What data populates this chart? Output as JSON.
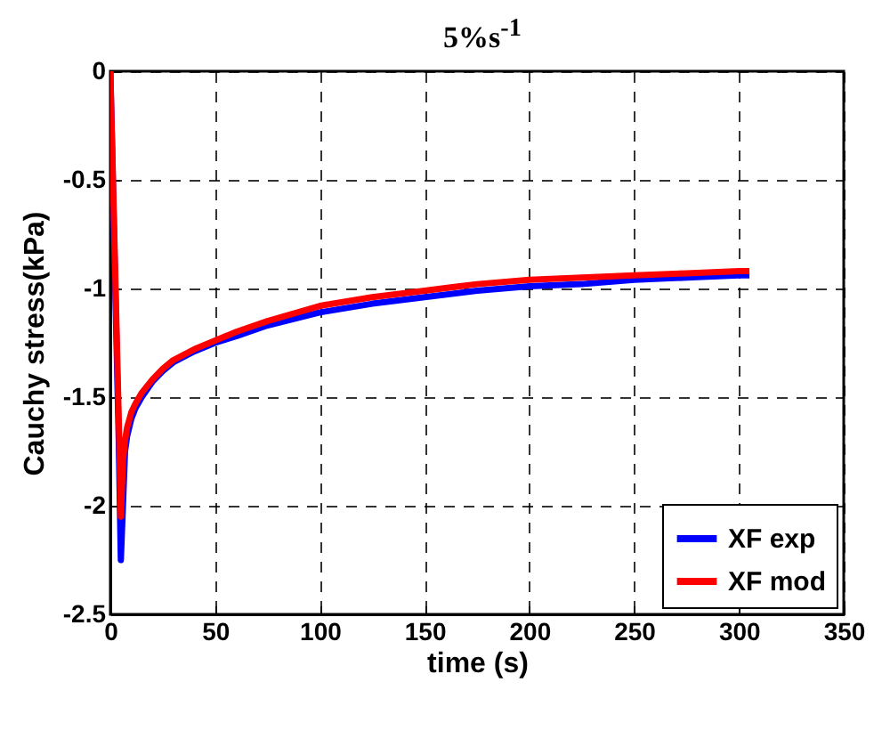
{
  "chart_data": {
    "type": "line",
    "title": "5%s$^{-1}$",
    "xlabel": "time (s)",
    "ylabel": "Cauchy stress(kPa)",
    "xlim": [
      0,
      350
    ],
    "xticks": [
      0,
      50,
      100,
      150,
      200,
      250,
      300,
      350
    ],
    "ylim": [
      -2.5,
      0
    ],
    "yticks": [
      -2.5,
      -2,
      -1.5,
      -1,
      -0.5,
      0
    ],
    "grid": true,
    "legend": "bottom right",
    "series": [
      {
        "name": "XF exp",
        "color": "#0000ff",
        "x": [
          0,
          4,
          5,
          6,
          7,
          8,
          10,
          12,
          15,
          20,
          25,
          30,
          40,
          50,
          60,
          75,
          100,
          125,
          150,
          175,
          200,
          225,
          250,
          275,
          300,
          305
        ],
        "values": [
          0,
          -1.7,
          -2.25,
          -2.0,
          -1.75,
          -1.68,
          -1.6,
          -1.55,
          -1.5,
          -1.43,
          -1.38,
          -1.34,
          -1.29,
          -1.25,
          -1.22,
          -1.17,
          -1.11,
          -1.07,
          -1.04,
          -1.01,
          -0.99,
          -0.98,
          -0.96,
          -0.95,
          -0.94,
          -0.94
        ]
      },
      {
        "name": "XF mod",
        "color": "#ff0000",
        "x": [
          0,
          1,
          2,
          3,
          4,
          5,
          6,
          7,
          8,
          10,
          12,
          15,
          20,
          25,
          30,
          40,
          50,
          60,
          75,
          100,
          125,
          150,
          175,
          200,
          225,
          250,
          275,
          300,
          305
        ],
        "values": [
          0,
          -0.4,
          -0.8,
          -1.2,
          -1.6,
          -2.05,
          -1.8,
          -1.7,
          -1.64,
          -1.57,
          -1.53,
          -1.48,
          -1.42,
          -1.37,
          -1.33,
          -1.28,
          -1.24,
          -1.2,
          -1.15,
          -1.08,
          -1.04,
          -1.01,
          -0.98,
          -0.96,
          -0.95,
          -0.94,
          -0.93,
          -0.92,
          -0.92
        ]
      }
    ]
  }
}
